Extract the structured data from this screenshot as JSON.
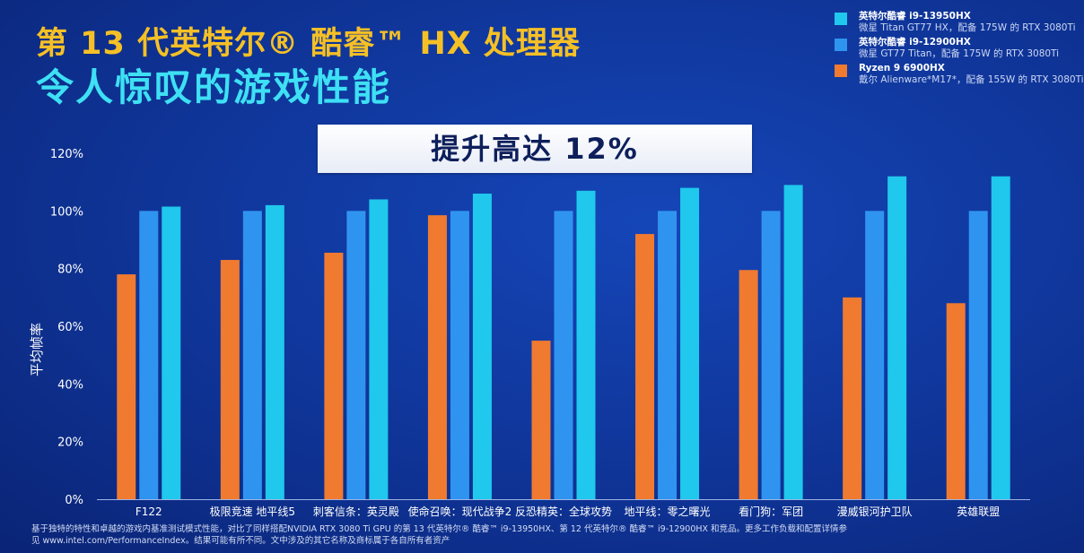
{
  "header": {
    "title_line1": "第 13 代英特尔® 酷睿™ HX 处理器",
    "title_line2": "令人惊叹的游戏性能"
  },
  "banner": "提升高达 12%",
  "legend": [
    {
      "name": "英特尔酷睿 i9-13950HX",
      "desc": "微星 Titan GT77 HX，配备 175W 的 RTX 3080Ti",
      "color": "#1fc8ec"
    },
    {
      "name": "英特尔酷睿 i9-12900HX",
      "desc": "微星 GT77 Titan，配备 175W 的 RTX 3080Ti",
      "color": "#2f94f0"
    },
    {
      "name": "Ryzen 9 6900HX",
      "desc": "戴尔 Alienware*M17*，配备 155W 的 RTX 3080Ti",
      "color": "#f07a30"
    }
  ],
  "chart_data": {
    "type": "bar",
    "ylabel": "平均帧率",
    "ylim": [
      0,
      120
    ],
    "ytick_labels": [
      "0%",
      "20%",
      "40%",
      "60%",
      "80%",
      "100%",
      "120%"
    ],
    "categories": [
      "F122",
      "极限竞速 地平线5",
      "刺客信条：英灵殿",
      "使命召唤：现代战争2",
      "反恐精英：全球攻势",
      "地平线：零之曙光",
      "看门狗：军团",
      "漫威银河护卫队",
      "英雄联盟"
    ],
    "series": [
      {
        "name": "Ryzen 9 6900HX",
        "color": "#f07a30",
        "values": [
          78,
          83,
          85.5,
          98.5,
          55,
          92,
          79.5,
          70,
          68
        ]
      },
      {
        "name": "英特尔酷睿 i9-12900HX",
        "color": "#2f94f0",
        "values": [
          100,
          100,
          100,
          100,
          100,
          100,
          100,
          100,
          100
        ]
      },
      {
        "name": "英特尔酷睿 i9-13950HX",
        "color": "#1fc8ec",
        "values": [
          101.5,
          102,
          104,
          106,
          107,
          108,
          109,
          112,
          112
        ]
      }
    ],
    "grid": false,
    "legend_position": "top-right"
  },
  "footnote": {
    "line1": "基于独特的特性和卓越的游戏内基准测试模式性能，对比了同样搭配NVIDIA RTX 3080 Ti GPU 的第 13 代英特尔® 酷睿™ i9-13950HX、第 12 代英特尔® 酷睿™ i9-12900HX 和竞品。更多工作负载和配置详情参",
    "line2": "见 www.intel.com/PerformanceIndex。结果可能有所不同。文中涉及的其它名称及商标属于各自所有者资产"
  }
}
